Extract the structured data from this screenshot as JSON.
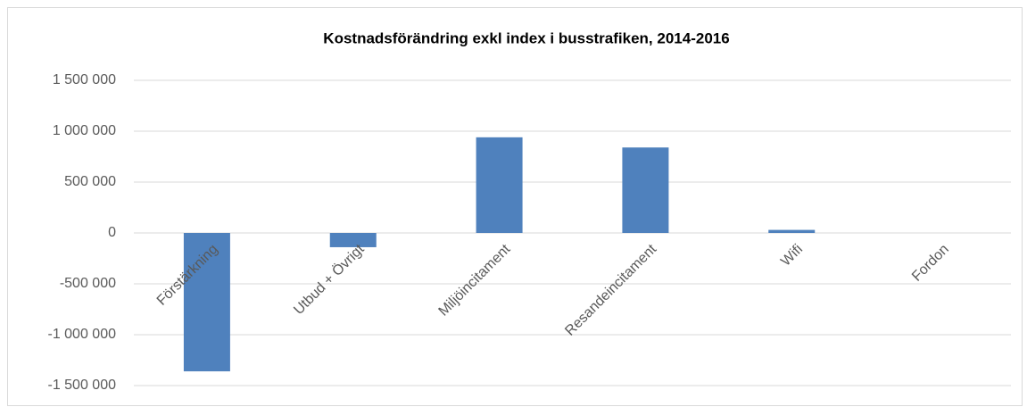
{
  "chart_data": {
    "type": "bar",
    "title": "Kostnadsförändring exkl index i busstrafiken, 2014-2016",
    "categories": [
      "Förstärkning",
      "Utbud + Övrigt",
      "Miljöincitament",
      "Resandeincitament",
      "Wifi",
      "Fordon"
    ],
    "values": [
      -1360000,
      -140000,
      940000,
      840000,
      30000,
      0
    ],
    "color": "#4f81bd",
    "ylim": [
      -1500000,
      1500000
    ],
    "yticks": [
      {
        "value": -1500000,
        "label": "-1 500 000"
      },
      {
        "value": -1000000,
        "label": "-1 000 000"
      },
      {
        "value": -500000,
        "label": "-500 000"
      },
      0,
      {
        "value": 500000,
        "label": "500 000"
      },
      {
        "value": 1000000,
        "label": "1 000 000"
      },
      {
        "value": 1500000,
        "label": "1 500 000"
      }
    ],
    "grid": true
  }
}
